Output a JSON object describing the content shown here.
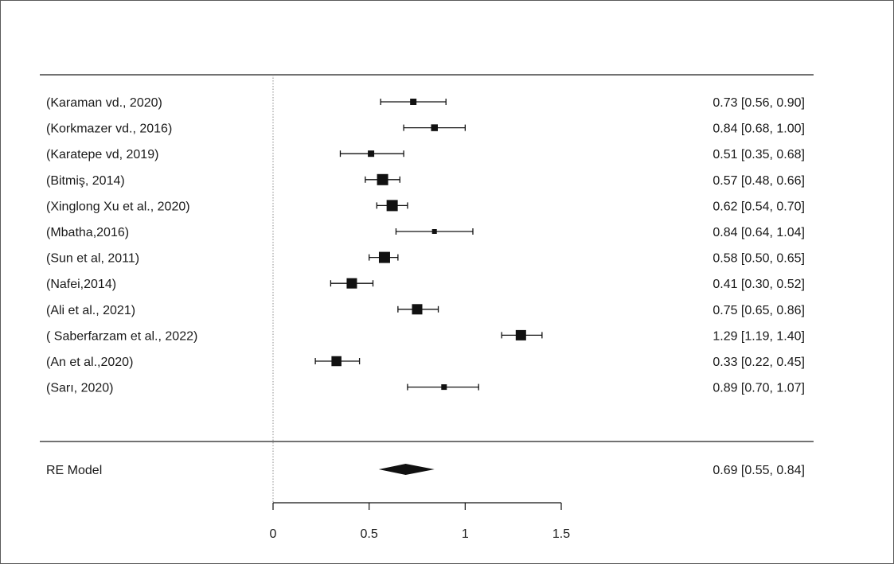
{
  "chart_data": {
    "type": "forest",
    "xlim": [
      0,
      1.5
    ],
    "xticks": [
      "0",
      "0.5",
      "1",
      "1.5"
    ],
    "reference_line": 0,
    "studies": [
      {
        "label": "(Karaman vd., 2020)",
        "est": 0.73,
        "lo": 0.56,
        "hi": 0.9,
        "ci_text": "0.73 [0.56, 0.90]",
        "weight": 0.4
      },
      {
        "label": "(Korkmazer vd., 2016)",
        "est": 0.84,
        "lo": 0.68,
        "hi": 1.0,
        "ci_text": "0.84 [0.68, 1.00]",
        "weight": 0.45
      },
      {
        "label": "(Karatepe vd, 2019)",
        "est": 0.51,
        "lo": 0.35,
        "hi": 0.68,
        "ci_text": "0.51 [0.35, 0.68]",
        "weight": 0.4
      },
      {
        "label": "(Bitmiş, 2014)",
        "est": 0.57,
        "lo": 0.48,
        "hi": 0.66,
        "ci_text": "0.57 [0.48, 0.66]",
        "weight": 1.0
      },
      {
        "label": "(Xinglong Xu et al., 2020)",
        "est": 0.62,
        "lo": 0.54,
        "hi": 0.7,
        "ci_text": "0.62 [0.54, 0.70]",
        "weight": 1.0
      },
      {
        "label": "(Mbatha,2016)",
        "est": 0.84,
        "lo": 0.64,
        "hi": 1.04,
        "ci_text": "0.84 [0.64, 1.04]",
        "weight": 0.2
      },
      {
        "label": "(Sun et al, 2011)",
        "est": 0.58,
        "lo": 0.5,
        "hi": 0.65,
        "ci_text": "0.58 [0.50, 0.65]",
        "weight": 1.0
      },
      {
        "label": "(Nafei,2014)",
        "est": 0.41,
        "lo": 0.3,
        "hi": 0.52,
        "ci_text": "0.41 [0.30, 0.52]",
        "weight": 0.9
      },
      {
        "label": "(Ali et al., 2021)",
        "est": 0.75,
        "lo": 0.65,
        "hi": 0.86,
        "ci_text": "0.75 [0.65, 0.86]",
        "weight": 0.9
      },
      {
        "label": "( Saberfarzam et al., 2022)",
        "est": 1.29,
        "lo": 1.19,
        "hi": 1.4,
        "ci_text": "1.29 [1.19, 1.40]",
        "weight": 0.9
      },
      {
        "label": "(An et al.,2020)",
        "est": 0.33,
        "lo": 0.22,
        "hi": 0.45,
        "ci_text": "0.33 [0.22, 0.45]",
        "weight": 0.85
      },
      {
        "label": "(Sarı, 2020)",
        "est": 0.89,
        "lo": 0.7,
        "hi": 1.07,
        "ci_text": "0.89 [0.70, 1.07]",
        "weight": 0.3
      }
    ],
    "summary": {
      "label": "RE Model",
      "est": 0.69,
      "lo": 0.55,
      "hi": 0.84,
      "ci_text": "0.69 [0.55, 0.84]"
    },
    "grid": false,
    "colors": {
      "ink": "#111111",
      "text": "#1a1a1a",
      "frame": "#5a5a5a",
      "rule": "#444444",
      "reference": "#8c8c8c"
    }
  }
}
